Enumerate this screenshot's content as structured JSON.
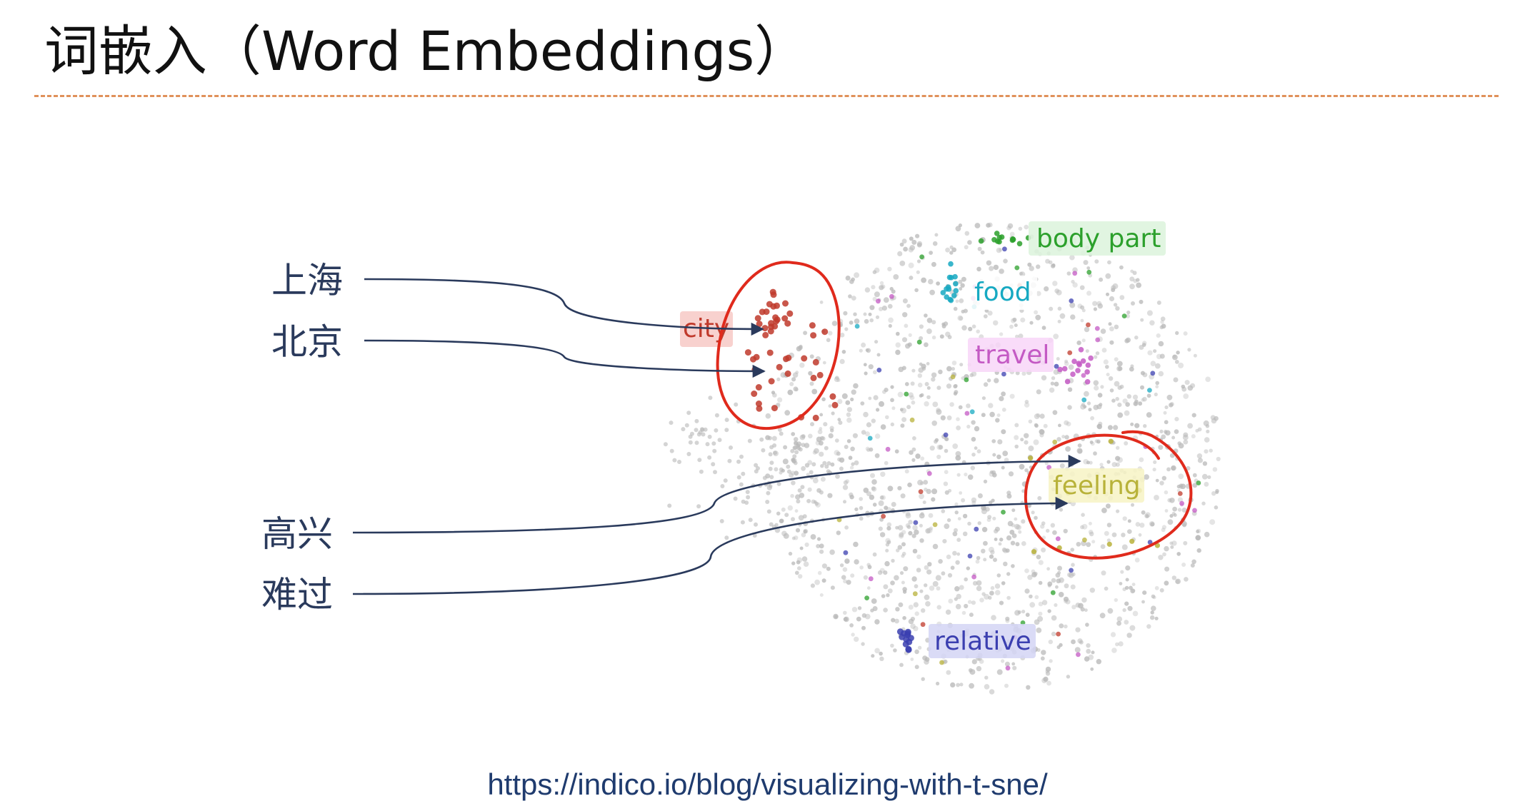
{
  "title": "词嵌入（Word Embeddings）",
  "source_url": "https://indico.io/blog/visualizing-with-t-sne/",
  "words": {
    "shanghai": "上海",
    "beijing": "北京",
    "happy": "高兴",
    "sad": "难过"
  },
  "categories": [
    {
      "key": "city",
      "label": "city",
      "color": "#c0392b",
      "bg": "#f7c9c6"
    },
    {
      "key": "body_part",
      "label": "body part",
      "color": "#2ca02c",
      "bg": "#dcf3dc"
    },
    {
      "key": "food",
      "label": "food",
      "color": "#17a9c2",
      "bg": "#ffffff"
    },
    {
      "key": "travel",
      "label": "travel",
      "color": "#c45ac4",
      "bg": "#f8d6f8"
    },
    {
      "key": "feeling",
      "label": "feeling",
      "color": "#b8b23a",
      "bg": "#f7f3c4"
    },
    {
      "key": "relative",
      "label": "relative",
      "color": "#3b3fb0",
      "bg": "#d4d5f5"
    }
  ],
  "colors": {
    "annotation_red": "#e02a1c",
    "arrow": "#2a3a5c",
    "background_points": "#b8b8b8"
  }
}
